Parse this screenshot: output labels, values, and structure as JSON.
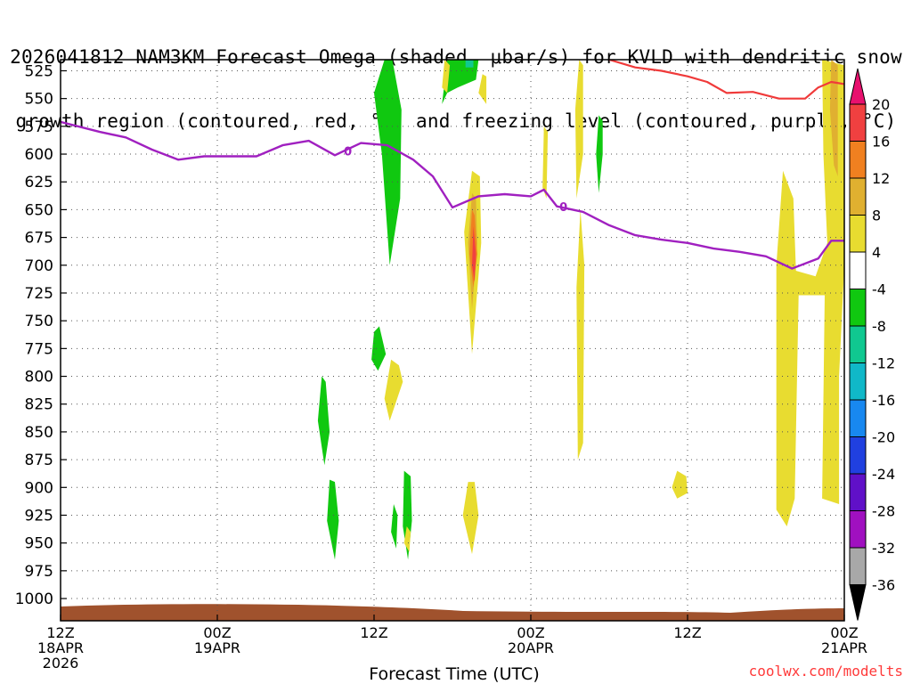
{
  "title_lines": [
    "2026041812 NAM3KM Forecast Omega (shaded, μbar/s) for KVLD with dendritic snow",
    "growth region (contoured, red, °C) and freezing level (contoured, purple, °C)"
  ],
  "credit": "coolwx.com/modelts",
  "chart_data": {
    "type": "time-height cross section",
    "xlabel": "Forecast Time (UTC)",
    "ylabel": "",
    "x_unit": "hours from 2026-04-18 12Z",
    "xlim": [
      0,
      60
    ],
    "x_ticks": [
      {
        "x": 0,
        "lines": [
          "12Z",
          "18APR",
          "2026"
        ]
      },
      {
        "x": 12,
        "lines": [
          "00Z",
          "19APR"
        ]
      },
      {
        "x": 24,
        "lines": [
          "12Z"
        ]
      },
      {
        "x": 36,
        "lines": [
          "00Z",
          "20APR"
        ]
      },
      {
        "x": 48,
        "lines": [
          "12Z"
        ]
      },
      {
        "x": 60,
        "lines": [
          "00Z",
          "21APR"
        ]
      }
    ],
    "y_unit": "hPa",
    "ylim": [
      1020,
      515
    ],
    "y_ticks": [
      525,
      550,
      575,
      600,
      625,
      650,
      675,
      700,
      725,
      750,
      775,
      800,
      825,
      850,
      875,
      900,
      925,
      950,
      975,
      1000
    ],
    "grid": true,
    "colorbar": {
      "unit": "μbar/s",
      "labels": [
        "20",
        "16",
        "12",
        "8",
        "4",
        "-4",
        "-8",
        "-12",
        "-16",
        "-20",
        "-24",
        "-28",
        "-32",
        "-36"
      ],
      "bins": [
        {
          "range": "20+",
          "color": "#e8106e"
        },
        {
          "range": "16 to 20",
          "color": "#f04040"
        },
        {
          "range": "12 to 16",
          "color": "#f08020"
        },
        {
          "range": "8 to 12",
          "color": "#e0b030"
        },
        {
          "range": "4 to 8",
          "color": "#e8dc30"
        },
        {
          "range": "-4 to 4",
          "color": "#ffffff"
        },
        {
          "range": "-8 to -4",
          "color": "#10c810"
        },
        {
          "range": "-12 to -8",
          "color": "#10c890"
        },
        {
          "range": "-16 to -12",
          "color": "#10b8c8"
        },
        {
          "range": "-20 to -16",
          "color": "#1888f0"
        },
        {
          "range": "-24 to -20",
          "color": "#2040e0"
        },
        {
          "range": "-28 to -24",
          "color": "#6010c8"
        },
        {
          "range": "-32 to -28",
          "color": "#a010c0"
        },
        {
          "range": "-36 to -32",
          "color": "#a8a8a8"
        },
        {
          "range": "< -36",
          "color": "#000000"
        }
      ]
    },
    "freezing_level": {
      "color": "#a020c0",
      "label": "0",
      "points": [
        [
          0,
          571
        ],
        [
          3,
          580
        ],
        [
          5,
          585
        ],
        [
          7,
          596
        ],
        [
          9,
          605
        ],
        [
          11,
          602
        ],
        [
          13,
          602
        ],
        [
          15,
          602
        ],
        [
          17,
          592
        ],
        [
          19,
          588
        ],
        [
          21,
          601
        ],
        [
          23,
          590
        ],
        [
          25,
          592
        ],
        [
          27,
          605
        ],
        [
          28.5,
          620
        ],
        [
          30,
          648
        ],
        [
          32,
          638
        ],
        [
          34,
          636
        ],
        [
          36,
          638
        ],
        [
          37,
          632
        ],
        [
          38,
          647
        ],
        [
          40,
          652
        ],
        [
          42,
          664
        ],
        [
          44,
          673
        ],
        [
          46,
          677
        ],
        [
          48,
          680
        ],
        [
          50,
          685
        ],
        [
          52,
          688
        ],
        [
          54,
          692
        ],
        [
          56,
          703
        ],
        [
          58,
          694
        ],
        [
          59,
          678
        ],
        [
          60,
          678
        ]
      ]
    },
    "snow_growth_region": {
      "color": "#f03a3a",
      "points": [
        [
          42,
          515
        ],
        [
          44,
          522
        ],
        [
          46,
          525
        ],
        [
          48,
          530
        ],
        [
          49.5,
          535
        ],
        [
          51,
          545
        ],
        [
          53,
          544
        ],
        [
          55,
          550
        ],
        [
          57,
          550
        ],
        [
          58,
          540
        ],
        [
          59,
          535
        ],
        [
          60,
          537
        ]
      ]
    },
    "omega_areas": [
      {
        "color": "#10c810",
        "t": [
          [
            24.8,
            515
          ],
          [
            24.0,
            545
          ],
          [
            24.6,
            600
          ],
          [
            25.2,
            700
          ],
          [
            26.0,
            640
          ],
          [
            26.1,
            560
          ],
          [
            25.4,
            515
          ]
        ]
      },
      {
        "color": "#10c810",
        "t": [
          [
            29.6,
            515
          ],
          [
            29.2,
            555
          ],
          [
            29.6,
            545
          ],
          [
            30.4,
            540
          ],
          [
            31.8,
            533
          ],
          [
            32.0,
            515
          ]
        ]
      },
      {
        "color": "#10c890",
        "t": [
          [
            31.0,
            515
          ],
          [
            31.0,
            522
          ],
          [
            31.6,
            522
          ],
          [
            31.6,
            515
          ]
        ]
      },
      {
        "color": "#10c810",
        "t": [
          [
            24.0,
            760
          ],
          [
            23.8,
            785
          ],
          [
            24.3,
            795
          ],
          [
            24.9,
            780
          ],
          [
            24.4,
            755
          ]
        ]
      },
      {
        "color": "#10c810",
        "t": [
          [
            20.0,
            800
          ],
          [
            19.7,
            840
          ],
          [
            20.2,
            880
          ],
          [
            20.6,
            850
          ],
          [
            20.3,
            805
          ]
        ]
      },
      {
        "color": "#10c810",
        "t": [
          [
            20.6,
            893
          ],
          [
            20.4,
            930
          ],
          [
            21.0,
            965
          ],
          [
            21.3,
            930
          ],
          [
            21.0,
            895
          ]
        ]
      },
      {
        "color": "#10c810",
        "t": [
          [
            26.3,
            885
          ],
          [
            26.2,
            935
          ],
          [
            26.6,
            965
          ],
          [
            26.9,
            930
          ],
          [
            26.8,
            890
          ]
        ]
      },
      {
        "color": "#10c810",
        "t": [
          [
            25.5,
            915
          ],
          [
            25.3,
            940
          ],
          [
            25.7,
            955
          ],
          [
            25.8,
            925
          ]
        ]
      },
      {
        "color": "#10c810",
        "t": [
          [
            41.2,
            565
          ],
          [
            41.0,
            600
          ],
          [
            41.2,
            635
          ],
          [
            41.5,
            600
          ],
          [
            41.5,
            570
          ]
        ]
      },
      {
        "color": "#e8dc30",
        "t": [
          [
            29.4,
            515
          ],
          [
            29.2,
            540
          ],
          [
            29.6,
            545
          ],
          [
            29.8,
            520
          ]
        ]
      },
      {
        "color": "#e8dc30",
        "t": [
          [
            32.3,
            528
          ],
          [
            32.0,
            545
          ],
          [
            32.6,
            555
          ],
          [
            32.6,
            530
          ]
        ]
      },
      {
        "color": "#e8dc30",
        "t": [
          [
            31.5,
            615
          ],
          [
            30.9,
            670
          ],
          [
            31.5,
            780
          ],
          [
            32.2,
            680
          ],
          [
            32.1,
            620
          ]
        ]
      },
      {
        "color": "#e0b030",
        "t": [
          [
            31.5,
            635
          ],
          [
            31.2,
            680
          ],
          [
            31.5,
            740
          ],
          [
            31.9,
            680
          ],
          [
            31.8,
            640
          ]
        ]
      },
      {
        "color": "#f08020",
        "t": [
          [
            31.5,
            650
          ],
          [
            31.3,
            690
          ],
          [
            31.6,
            720
          ],
          [
            31.9,
            690
          ],
          [
            31.7,
            655
          ]
        ]
      },
      {
        "color": "#f04040",
        "t": [
          [
            31.6,
            665
          ],
          [
            31.5,
            700
          ],
          [
            31.7,
            715
          ],
          [
            31.8,
            690
          ]
        ]
      },
      {
        "color": "#e8dc30",
        "t": [
          [
            25.3,
            785
          ],
          [
            24.8,
            820
          ],
          [
            25.2,
            840
          ],
          [
            26.2,
            805
          ],
          [
            25.9,
            790
          ]
        ]
      },
      {
        "color": "#e8dc30",
        "t": [
          [
            26.5,
            935
          ],
          [
            26.3,
            950
          ],
          [
            26.7,
            958
          ],
          [
            26.8,
            940
          ]
        ]
      },
      {
        "color": "#e8dc30",
        "t": [
          [
            31.2,
            895
          ],
          [
            30.8,
            925
          ],
          [
            31.5,
            960
          ],
          [
            32.0,
            925
          ],
          [
            31.7,
            895
          ]
        ]
      },
      {
        "color": "#e8dc30",
        "t": [
          [
            39.7,
            515
          ],
          [
            39.4,
            560
          ],
          [
            39.5,
            640
          ],
          [
            40.0,
            600
          ],
          [
            40.0,
            520
          ]
        ]
      },
      {
        "color": "#e8dc30",
        "t": [
          [
            39.8,
            650
          ],
          [
            39.5,
            720
          ],
          [
            39.6,
            875
          ],
          [
            40.0,
            860
          ],
          [
            40.1,
            700
          ]
        ]
      },
      {
        "color": "#e8dc30",
        "t": [
          [
            37.0,
            575
          ],
          [
            36.9,
            630
          ],
          [
            37.2,
            640
          ],
          [
            37.3,
            580
          ]
        ]
      },
      {
        "color": "#e8dc30",
        "t": [
          [
            47.2,
            885
          ],
          [
            46.8,
            900
          ],
          [
            47.2,
            910
          ],
          [
            48.0,
            905
          ],
          [
            47.9,
            890
          ]
        ]
      },
      {
        "color": "#e8dc30",
        "t": [
          [
            55.3,
            615
          ],
          [
            54.8,
            700
          ],
          [
            54.8,
            920
          ],
          [
            55.6,
            935
          ],
          [
            56.2,
            910
          ],
          [
            56.5,
            727
          ],
          [
            58.5,
            727
          ],
          [
            58.3,
            910
          ],
          [
            59.6,
            915
          ],
          [
            59.6,
            800
          ],
          [
            60.0,
            700
          ],
          [
            60.0,
            520
          ],
          [
            58.3,
            515
          ],
          [
            58.4,
            600
          ],
          [
            58.7,
            680
          ],
          [
            57.8,
            710
          ],
          [
            56.3,
            705
          ],
          [
            56.1,
            640
          ]
        ]
      },
      {
        "color": "#e0b030",
        "t": [
          [
            59.0,
            515
          ],
          [
            58.9,
            560
          ],
          [
            59.2,
            610
          ],
          [
            59.5,
            620
          ],
          [
            59.5,
            520
          ]
        ]
      }
    ],
    "terrain_color": "#a0522d"
  }
}
